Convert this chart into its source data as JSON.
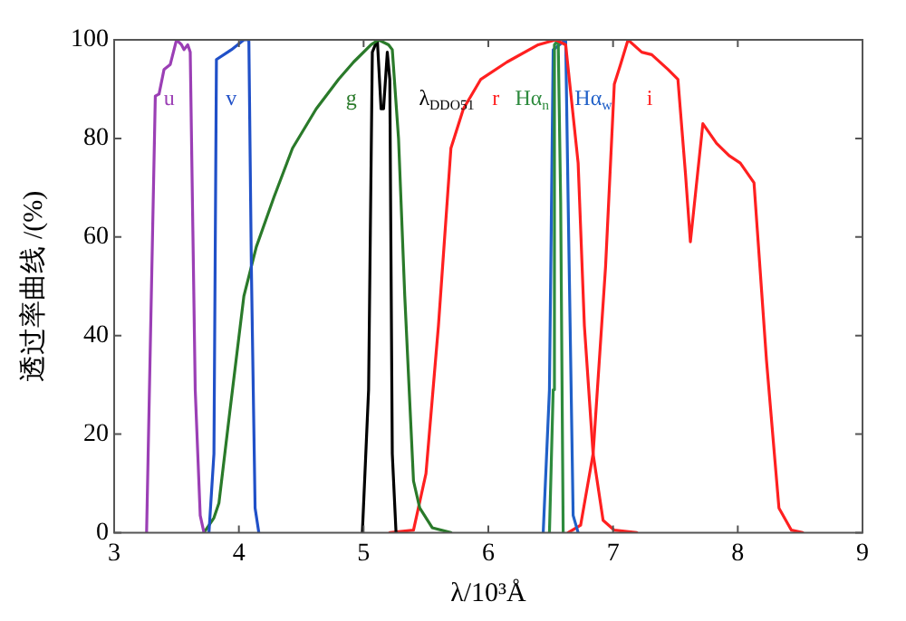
{
  "chart_data": {
    "type": "line",
    "xlabel": "λ/10³Å",
    "ylabel": "透过率曲线 /(%)",
    "xlim": [
      3,
      9
    ],
    "xticks": [
      3,
      4,
      5,
      6,
      7,
      8,
      9
    ],
    "ylim": [
      0,
      100
    ],
    "yticks": [
      0,
      20,
      40,
      60,
      80,
      100
    ],
    "legend": false,
    "marker": "none",
    "line_style": "solid",
    "series": [
      {
        "name": "u",
        "color": "#9b3fb5",
        "x": [
          3.26,
          3.33,
          3.36,
          3.4,
          3.45,
          3.5,
          3.54,
          3.56,
          3.59,
          3.61,
          3.65,
          3.69,
          3.72
        ],
        "values": [
          0,
          88.6,
          89,
          94,
          95,
          100,
          99,
          98,
          99,
          97.5,
          29,
          3.5,
          0
        ]
      },
      {
        "name": "v",
        "color": "#2050c8",
        "x": [
          3.76,
          3.8,
          3.82,
          3.94,
          4.04,
          4.08,
          4.1,
          4.13,
          4.16
        ],
        "values": [
          0,
          16,
          96,
          98,
          100,
          100,
          54,
          5,
          0
        ]
      },
      {
        "name": "g",
        "color": "#2a7a2a",
        "x": [
          3.72,
          3.8,
          3.84,
          3.92,
          4.04,
          4.14,
          4.28,
          4.43,
          4.62,
          4.8,
          4.92,
          5.06,
          5.12,
          5.2,
          5.23,
          5.28,
          5.33,
          5.4,
          5.45,
          5.55,
          5.7
        ],
        "values": [
          0,
          3,
          6,
          23,
          48,
          58,
          68,
          78,
          86,
          92,
          95.5,
          99,
          100,
          99,
          98,
          80,
          48,
          10.5,
          5,
          1,
          0
        ]
      },
      {
        "name": "λ$_{DDO51}$",
        "color": "#000000",
        "x": [
          4.99,
          5.04,
          5.07,
          5.11,
          5.14,
          5.16,
          5.19,
          5.21,
          5.23,
          5.26
        ],
        "values": [
          0,
          29,
          97.5,
          100,
          86,
          86,
          97.5,
          92,
          16,
          0
        ]
      },
      {
        "name": "r",
        "color": "#ff2020",
        "x": [
          5.21,
          5.4,
          5.5,
          5.6,
          5.7,
          5.8,
          5.94,
          6.15,
          6.4,
          6.54,
          6.62,
          6.72,
          6.77,
          6.84,
          6.92,
          7.01,
          7.19
        ],
        "values": [
          0,
          0.5,
          12,
          42,
          78,
          86,
          92,
          95.5,
          99,
          100,
          99,
          75,
          42,
          16,
          2.5,
          0.5,
          0
        ]
      },
      {
        "name": "Hα$_{n}$",
        "color": "#2e8b3e",
        "x": [
          6.49,
          6.52,
          6.53,
          6.56,
          6.58,
          6.6
        ],
        "values": [
          0,
          29,
          99,
          100,
          67,
          0
        ]
      },
      {
        "name": "Hα$_{w}$",
        "color": "#2060c8",
        "x": [
          6.44,
          6.49,
          6.52,
          6.57,
          6.62,
          6.64,
          6.68,
          6.72
        ],
        "values": [
          0,
          29,
          98,
          99,
          100,
          67,
          3.5,
          0
        ]
      },
      {
        "name": "i",
        "color": "#ff2020",
        "x": [
          6.64,
          6.74,
          6.84,
          6.94,
          7.01,
          7.06,
          7.12,
          7.23,
          7.31,
          7.44,
          7.52,
          7.58,
          7.62,
          7.72,
          7.83,
          7.93,
          8.02,
          8.13,
          8.23,
          8.33,
          8.43,
          8.52
        ],
        "values": [
          0,
          1.5,
          16,
          54,
          91,
          95,
          100,
          97.5,
          97,
          94,
          92,
          73,
          59,
          83,
          79,
          76.5,
          75,
          71,
          35,
          5,
          0.5,
          0
        ]
      }
    ]
  }
}
